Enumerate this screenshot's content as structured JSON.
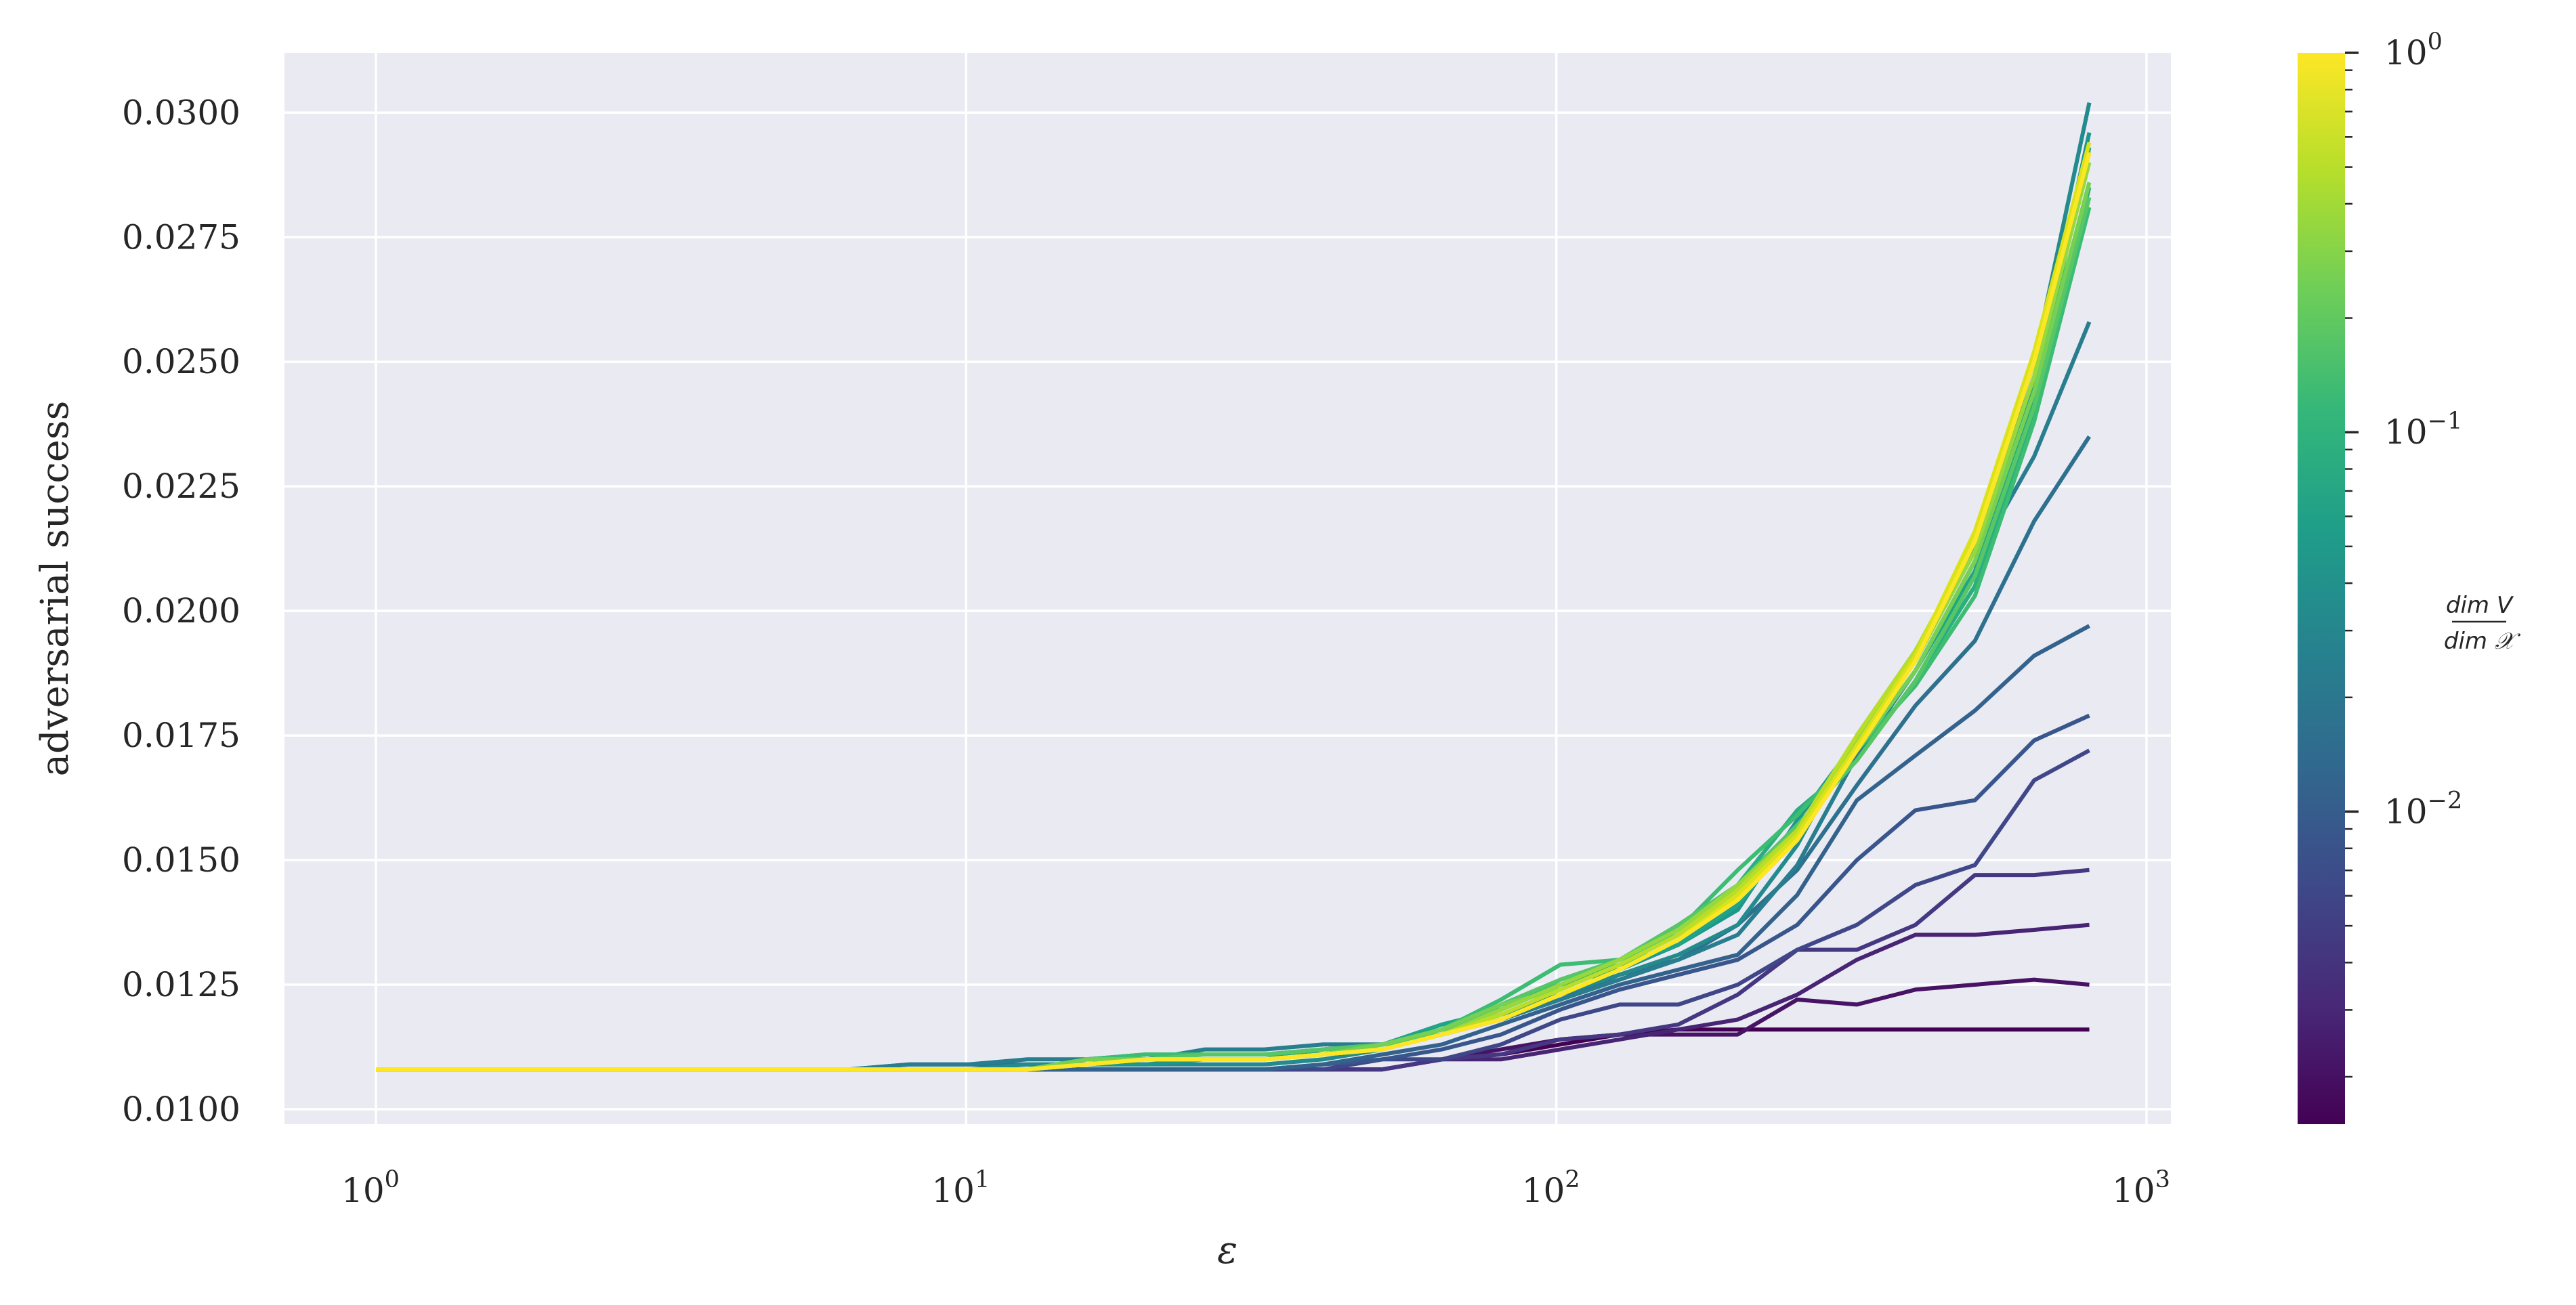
{
  "chart_data": {
    "type": "line",
    "xlabel": "ε",
    "ylabel": "adversarial success",
    "x_scale": "log",
    "xlim": [
      0.7,
      1100
    ],
    "ylim": [
      0.0097,
      0.0312
    ],
    "x_ticks": [
      1,
      10,
      100,
      1000
    ],
    "x_tick_labels": [
      {
        "base": "10",
        "exp": "0"
      },
      {
        "base": "10",
        "exp": "1"
      },
      {
        "base": "10",
        "exp": "2"
      },
      {
        "base": "10",
        "exp": "3"
      }
    ],
    "y_ticks": [
      "0.0100",
      "0.0125",
      "0.0150",
      "0.0175",
      "0.0200",
      "0.0225",
      "0.0250",
      "0.0275",
      "0.0300"
    ],
    "grid": true,
    "legend": "none",
    "background": "#eaeaf2",
    "colorbar": {
      "label_numerator": "dim V",
      "label_denominator": "dim 𝒳",
      "scale": "log",
      "range": [
        0.0015,
        1.0
      ],
      "ticks": [
        {
          "value": 1.0,
          "base": "10",
          "exp": "0"
        },
        {
          "value": 0.1,
          "base": "10",
          "exp": "−1"
        },
        {
          "value": 0.01,
          "base": "10",
          "exp": "−2"
        }
      ],
      "colormap": "viridis",
      "stops": [
        "#440154",
        "#482878",
        "#3e4989",
        "#31688e",
        "#26828e",
        "#1f9e89",
        "#35b779",
        "#6ece58",
        "#b5de2b",
        "#fde725"
      ]
    },
    "x": [
      1,
      1.26,
      1.59,
      2,
      2.52,
      3.17,
      4,
      5.04,
      6.35,
      8,
      10.08,
      12.7,
      16,
      20.2,
      25.4,
      32,
      40.3,
      50.8,
      64,
      80.6,
      101.6,
      128,
      161,
      203,
      256,
      323,
      406,
      512,
      645,
      800
    ],
    "series": [
      {
        "level": 0.0015,
        "color": "#440154",
        "values": [
          0.0108,
          0.0108,
          0.0108,
          0.0108,
          0.0108,
          0.0108,
          0.0108,
          0.0108,
          0.0108,
          0.0108,
          0.0108,
          0.0108,
          0.0108,
          0.0108,
          0.0108,
          0.0108,
          0.0108,
          0.0108,
          0.011,
          0.0111,
          0.0113,
          0.0115,
          0.0116,
          0.0116,
          0.0116,
          0.0116,
          0.0116,
          0.0116,
          0.0116,
          0.0116
        ]
      },
      {
        "level": 0.0022,
        "color": "#471365",
        "values": [
          0.0108,
          0.0108,
          0.0108,
          0.0108,
          0.0108,
          0.0108,
          0.0108,
          0.0108,
          0.0108,
          0.0108,
          0.0108,
          0.0108,
          0.0108,
          0.0108,
          0.0108,
          0.0108,
          0.0108,
          0.0108,
          0.011,
          0.0112,
          0.0114,
          0.0115,
          0.0115,
          0.0115,
          0.0122,
          0.0121,
          0.0124,
          0.0125,
          0.0126,
          0.0125
        ]
      },
      {
        "level": 0.0032,
        "color": "#482475",
        "values": [
          0.0108,
          0.0108,
          0.0108,
          0.0108,
          0.0108,
          0.0108,
          0.0108,
          0.0108,
          0.0108,
          0.0108,
          0.0108,
          0.0108,
          0.0108,
          0.0108,
          0.0108,
          0.0108,
          0.0108,
          0.0108,
          0.011,
          0.011,
          0.0112,
          0.0114,
          0.0116,
          0.0118,
          0.0123,
          0.013,
          0.0135,
          0.0135,
          0.0136,
          0.0137
        ]
      },
      {
        "level": 0.0045,
        "color": "#453781",
        "values": [
          0.0108,
          0.0108,
          0.0108,
          0.0108,
          0.0108,
          0.0108,
          0.0108,
          0.0108,
          0.0108,
          0.0108,
          0.0108,
          0.0108,
          0.0108,
          0.0108,
          0.0108,
          0.0108,
          0.0108,
          0.0108,
          0.011,
          0.0111,
          0.0114,
          0.0115,
          0.0117,
          0.0123,
          0.0132,
          0.0132,
          0.0137,
          0.0147,
          0.0147,
          0.0148
        ]
      },
      {
        "level": 0.0065,
        "color": "#3f4788",
        "values": [
          0.0108,
          0.0108,
          0.0108,
          0.0108,
          0.0108,
          0.0108,
          0.0108,
          0.0108,
          0.0108,
          0.0108,
          0.0108,
          0.0108,
          0.0108,
          0.0108,
          0.0108,
          0.0108,
          0.0108,
          0.011,
          0.011,
          0.0113,
          0.0118,
          0.0121,
          0.0121,
          0.0125,
          0.0132,
          0.0137,
          0.0145,
          0.0149,
          0.0166,
          0.0172
        ]
      },
      {
        "level": 0.009,
        "color": "#39568c",
        "values": [
          0.0108,
          0.0108,
          0.0108,
          0.0108,
          0.0108,
          0.0108,
          0.0108,
          0.0108,
          0.0108,
          0.0108,
          0.0108,
          0.0108,
          0.0108,
          0.0108,
          0.0108,
          0.0108,
          0.0109,
          0.011,
          0.0112,
          0.0115,
          0.012,
          0.0124,
          0.0127,
          0.013,
          0.0137,
          0.015,
          0.016,
          0.0162,
          0.0174,
          0.0179
        ]
      },
      {
        "level": 0.013,
        "color": "#33638d",
        "values": [
          0.0108,
          0.0108,
          0.0108,
          0.0108,
          0.0108,
          0.0108,
          0.0108,
          0.0108,
          0.0108,
          0.0108,
          0.0108,
          0.0108,
          0.0108,
          0.0108,
          0.0108,
          0.0108,
          0.0109,
          0.0111,
          0.0113,
          0.0117,
          0.0121,
          0.0125,
          0.0128,
          0.0131,
          0.0143,
          0.0162,
          0.0171,
          0.018,
          0.0191,
          0.0197
        ]
      },
      {
        "level": 0.018,
        "color": "#2d718e",
        "values": [
          0.0108,
          0.0108,
          0.0108,
          0.0108,
          0.0108,
          0.0108,
          0.0108,
          0.0108,
          0.0108,
          0.0109,
          0.0109,
          0.0109,
          0.0109,
          0.011,
          0.011,
          0.011,
          0.0112,
          0.0113,
          0.0115,
          0.0118,
          0.0122,
          0.0127,
          0.013,
          0.0137,
          0.0148,
          0.0165,
          0.0181,
          0.0194,
          0.0218,
          0.0235
        ]
      },
      {
        "level": 0.026,
        "color": "#287d8e",
        "values": [
          0.0108,
          0.0108,
          0.0108,
          0.0108,
          0.0108,
          0.0108,
          0.0108,
          0.0108,
          0.0108,
          0.0109,
          0.0109,
          0.011,
          0.011,
          0.011,
          0.0112,
          0.0112,
          0.0113,
          0.0113,
          0.0115,
          0.0118,
          0.0122,
          0.0126,
          0.013,
          0.0135,
          0.0149,
          0.0171,
          0.0188,
          0.021,
          0.0231,
          0.0258
        ]
      },
      {
        "level": 0.036,
        "color": "#238a8d",
        "values": [
          0.0108,
          0.0108,
          0.0108,
          0.0108,
          0.0108,
          0.0108,
          0.0108,
          0.0108,
          0.0108,
          0.0108,
          0.0108,
          0.0109,
          0.0109,
          0.0109,
          0.0109,
          0.0109,
          0.011,
          0.0112,
          0.0115,
          0.0119,
          0.0123,
          0.0127,
          0.0131,
          0.0137,
          0.0153,
          0.0175,
          0.0192,
          0.0213,
          0.025,
          0.0302
        ]
      },
      {
        "level": 0.052,
        "color": "#1f968b",
        "values": [
          0.0108,
          0.0108,
          0.0108,
          0.0108,
          0.0108,
          0.0108,
          0.0108,
          0.0108,
          0.0108,
          0.0108,
          0.0108,
          0.0108,
          0.0109,
          0.0109,
          0.011,
          0.011,
          0.0111,
          0.0113,
          0.0116,
          0.012,
          0.0125,
          0.0128,
          0.0133,
          0.014,
          0.0158,
          0.0174,
          0.019,
          0.0213,
          0.0245,
          0.0296
        ]
      },
      {
        "level": 0.075,
        "color": "#20a386",
        "values": [
          0.0108,
          0.0108,
          0.0108,
          0.0108,
          0.0108,
          0.0108,
          0.0108,
          0.0108,
          0.0108,
          0.0108,
          0.0108,
          0.0108,
          0.011,
          0.0111,
          0.0111,
          0.0111,
          0.0111,
          0.0113,
          0.0117,
          0.012,
          0.0125,
          0.0129,
          0.0133,
          0.0141,
          0.0156,
          0.0172,
          0.0188,
          0.0208,
          0.0243,
          0.0293
        ]
      },
      {
        "level": 0.11,
        "color": "#29af7f",
        "values": [
          0.0108,
          0.0108,
          0.0108,
          0.0108,
          0.0108,
          0.0108,
          0.0108,
          0.0108,
          0.0108,
          0.0108,
          0.0108,
          0.0108,
          0.011,
          0.0111,
          0.0111,
          0.0111,
          0.0112,
          0.0113,
          0.0116,
          0.012,
          0.0126,
          0.013,
          0.0135,
          0.0145,
          0.016,
          0.017,
          0.0186,
          0.0205,
          0.024,
          0.0285
        ]
      },
      {
        "level": 0.16,
        "color": "#3dbc74",
        "values": [
          0.0108,
          0.0108,
          0.0108,
          0.0108,
          0.0108,
          0.0108,
          0.0108,
          0.0108,
          0.0108,
          0.0108,
          0.0108,
          0.0108,
          0.011,
          0.0111,
          0.0111,
          0.0111,
          0.0112,
          0.0113,
          0.0116,
          0.0122,
          0.0129,
          0.013,
          0.0136,
          0.0148,
          0.0159,
          0.0172,
          0.0185,
          0.0203,
          0.0238,
          0.0281
        ]
      },
      {
        "level": 0.22,
        "color": "#56c667",
        "values": [
          0.0108,
          0.0108,
          0.0108,
          0.0108,
          0.0108,
          0.0108,
          0.0108,
          0.0108,
          0.0108,
          0.0108,
          0.0108,
          0.0108,
          0.011,
          0.011,
          0.0111,
          0.0111,
          0.0112,
          0.0113,
          0.0115,
          0.0121,
          0.0126,
          0.013,
          0.0137,
          0.0145,
          0.0157,
          0.017,
          0.0186,
          0.0207,
          0.0241,
          0.0283
        ]
      },
      {
        "level": 0.32,
        "color": "#75d054",
        "values": [
          0.0108,
          0.0108,
          0.0108,
          0.0108,
          0.0108,
          0.0108,
          0.0108,
          0.0108,
          0.0108,
          0.0108,
          0.0108,
          0.0108,
          0.011,
          0.011,
          0.011,
          0.011,
          0.0111,
          0.0113,
          0.0116,
          0.0121,
          0.0124,
          0.0129,
          0.0135,
          0.0144,
          0.0155,
          0.0172,
          0.0188,
          0.021,
          0.0244,
          0.0286
        ]
      },
      {
        "level": 0.46,
        "color": "#95d840",
        "values": [
          0.0108,
          0.0108,
          0.0108,
          0.0108,
          0.0108,
          0.0108,
          0.0108,
          0.0108,
          0.0108,
          0.0108,
          0.0108,
          0.0108,
          0.0109,
          0.011,
          0.011,
          0.011,
          0.0111,
          0.0112,
          0.0115,
          0.012,
          0.0125,
          0.013,
          0.0136,
          0.0145,
          0.0156,
          0.0174,
          0.019,
          0.0212,
          0.0247,
          0.029
        ]
      },
      {
        "level": 0.65,
        "color": "#b8de29",
        "values": [
          0.0108,
          0.0108,
          0.0108,
          0.0108,
          0.0108,
          0.0108,
          0.0108,
          0.0108,
          0.0108,
          0.0108,
          0.0108,
          0.0108,
          0.0109,
          0.011,
          0.011,
          0.011,
          0.0111,
          0.0112,
          0.0115,
          0.0119,
          0.0124,
          0.0129,
          0.0135,
          0.0144,
          0.0156,
          0.0175,
          0.0192,
          0.0214,
          0.025,
          0.0292
        ]
      },
      {
        "level": 0.85,
        "color": "#dae319",
        "values": [
          0.0108,
          0.0108,
          0.0108,
          0.0108,
          0.0108,
          0.0108,
          0.0108,
          0.0108,
          0.0108,
          0.0108,
          0.0108,
          0.0108,
          0.0109,
          0.011,
          0.011,
          0.011,
          0.0111,
          0.0112,
          0.0115,
          0.0118,
          0.0123,
          0.0128,
          0.0134,
          0.0143,
          0.0155,
          0.0173,
          0.0191,
          0.0216,
          0.0252,
          0.0294
        ]
      },
      {
        "level": 1.0,
        "color": "#fde725",
        "values": [
          0.0108,
          0.0108,
          0.0108,
          0.0108,
          0.0108,
          0.0108,
          0.0108,
          0.0108,
          0.0108,
          0.0108,
          0.0108,
          0.0108,
          0.0109,
          0.011,
          0.011,
          0.011,
          0.0111,
          0.0112,
          0.0115,
          0.0118,
          0.0123,
          0.0128,
          0.0134,
          0.0142,
          0.0154,
          0.0172,
          0.019,
          0.0214,
          0.025,
          0.0292
        ]
      }
    ]
  }
}
